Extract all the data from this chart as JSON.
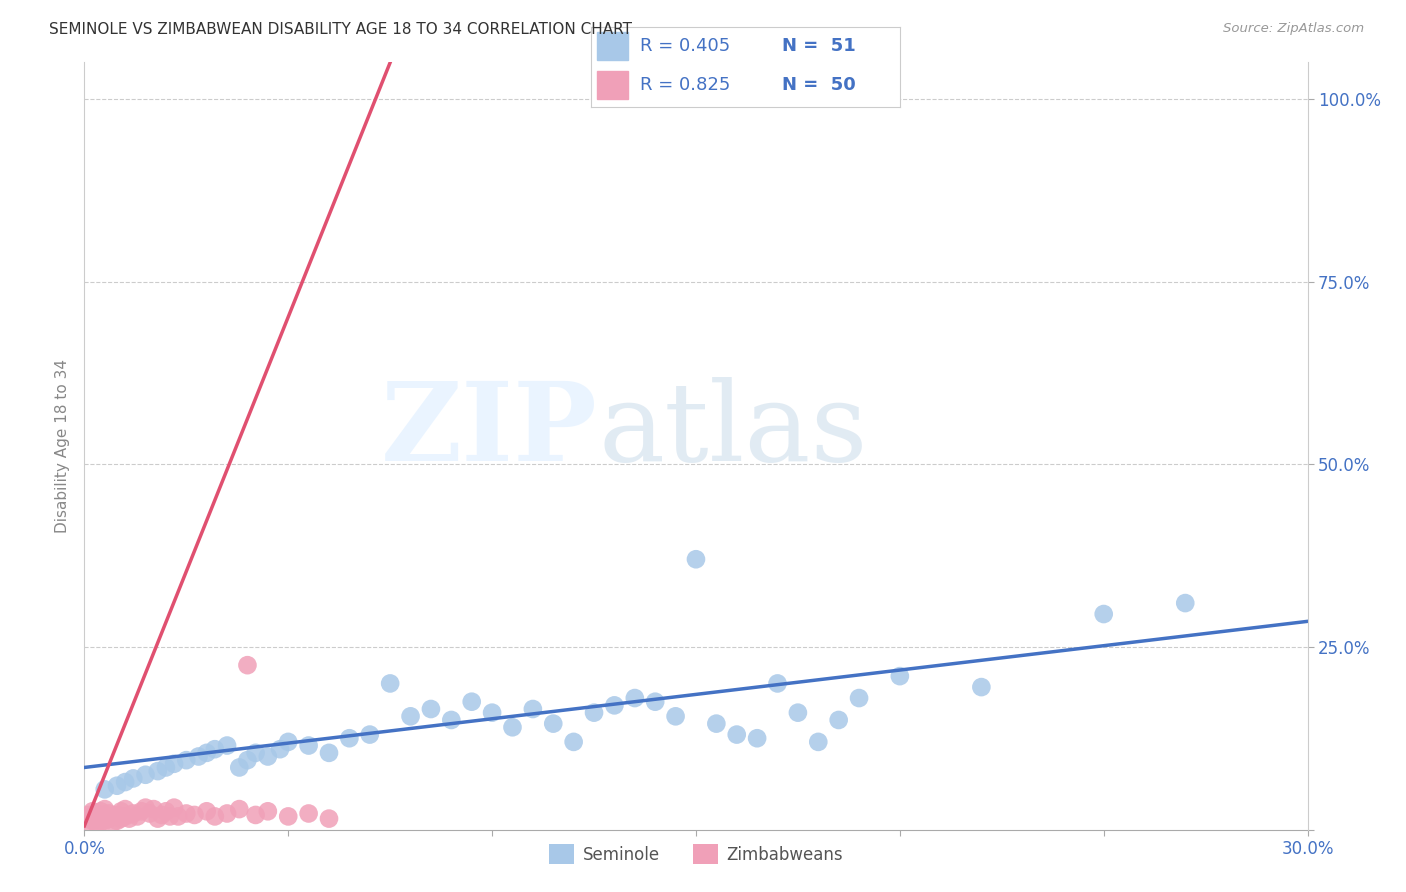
{
  "title": "SEMINOLE VS ZIMBABWEAN DISABILITY AGE 18 TO 34 CORRELATION CHART",
  "source": "Source: ZipAtlas.com",
  "ylabel": "Disability Age 18 to 34",
  "x_ticks": [
    0.0,
    0.05,
    0.1,
    0.15,
    0.2,
    0.25,
    0.3
  ],
  "x_tick_labels": [
    "0.0%",
    "",
    "",
    "",
    "",
    "",
    "30.0%"
  ],
  "y_ticks_right": [
    0.0,
    0.25,
    0.5,
    0.75,
    1.0
  ],
  "y_tick_labels_right": [
    "",
    "25.0%",
    "50.0%",
    "75.0%",
    "100.0%"
  ],
  "xlim": [
    0.0,
    0.3
  ],
  "ylim": [
    0.0,
    1.05
  ],
  "seminole_color": "#A8C8E8",
  "zimbabwean_color": "#F0A0B8",
  "seminole_line_color": "#4472C4",
  "zimbabwean_line_color": "#E05070",
  "legend_R_seminole": "R = 0.405",
  "legend_N_seminole": "N =  51",
  "legend_R_zimbabwean": "R = 0.825",
  "legend_N_zimbabwean": "N =  50",
  "seminole_x": [
    0.005,
    0.008,
    0.01,
    0.012,
    0.015,
    0.018,
    0.02,
    0.022,
    0.025,
    0.028,
    0.03,
    0.032,
    0.035,
    0.038,
    0.04,
    0.042,
    0.045,
    0.048,
    0.05,
    0.055,
    0.06,
    0.065,
    0.07,
    0.075,
    0.08,
    0.085,
    0.09,
    0.095,
    0.1,
    0.105,
    0.11,
    0.115,
    0.12,
    0.125,
    0.13,
    0.135,
    0.14,
    0.145,
    0.15,
    0.155,
    0.16,
    0.165,
    0.17,
    0.175,
    0.18,
    0.185,
    0.19,
    0.2,
    0.22,
    0.25,
    0.27
  ],
  "seminole_y": [
    0.055,
    0.06,
    0.065,
    0.07,
    0.075,
    0.08,
    0.085,
    0.09,
    0.095,
    0.1,
    0.105,
    0.11,
    0.115,
    0.085,
    0.095,
    0.105,
    0.1,
    0.11,
    0.12,
    0.115,
    0.105,
    0.125,
    0.13,
    0.2,
    0.155,
    0.165,
    0.15,
    0.175,
    0.16,
    0.14,
    0.165,
    0.145,
    0.12,
    0.16,
    0.17,
    0.18,
    0.175,
    0.155,
    0.37,
    0.145,
    0.13,
    0.125,
    0.2,
    0.16,
    0.12,
    0.15,
    0.18,
    0.21,
    0.195,
    0.295,
    0.31
  ],
  "zimbabwean_x": [
    0.001,
    0.001,
    0.001,
    0.002,
    0.002,
    0.002,
    0.003,
    0.003,
    0.003,
    0.004,
    0.004,
    0.004,
    0.005,
    0.005,
    0.005,
    0.006,
    0.006,
    0.007,
    0.007,
    0.008,
    0.008,
    0.009,
    0.009,
    0.01,
    0.01,
    0.011,
    0.012,
    0.013,
    0.014,
    0.015,
    0.016,
    0.017,
    0.018,
    0.019,
    0.02,
    0.021,
    0.022,
    0.023,
    0.025,
    0.027,
    0.03,
    0.032,
    0.035,
    0.038,
    0.04,
    0.042,
    0.045,
    0.05,
    0.055,
    0.06
  ],
  "zimbabwean_y": [
    0.01,
    0.015,
    0.02,
    0.012,
    0.018,
    0.025,
    0.008,
    0.015,
    0.022,
    0.01,
    0.018,
    0.025,
    0.012,
    0.02,
    0.028,
    0.015,
    0.022,
    0.01,
    0.018,
    0.012,
    0.02,
    0.015,
    0.025,
    0.018,
    0.028,
    0.015,
    0.022,
    0.018,
    0.025,
    0.03,
    0.022,
    0.028,
    0.015,
    0.02,
    0.025,
    0.018,
    0.03,
    0.018,
    0.022,
    0.02,
    0.025,
    0.018,
    0.022,
    0.028,
    0.225,
    0.02,
    0.025,
    0.018,
    0.022,
    0.015
  ],
  "zim_line_x0": 0.0,
  "zim_line_y0": 0.005,
  "zim_line_x1": 0.075,
  "zim_line_y1": 1.05,
  "sem_line_x0": 0.0,
  "sem_line_y0": 0.085,
  "sem_line_x1": 0.3,
  "sem_line_y1": 0.285
}
